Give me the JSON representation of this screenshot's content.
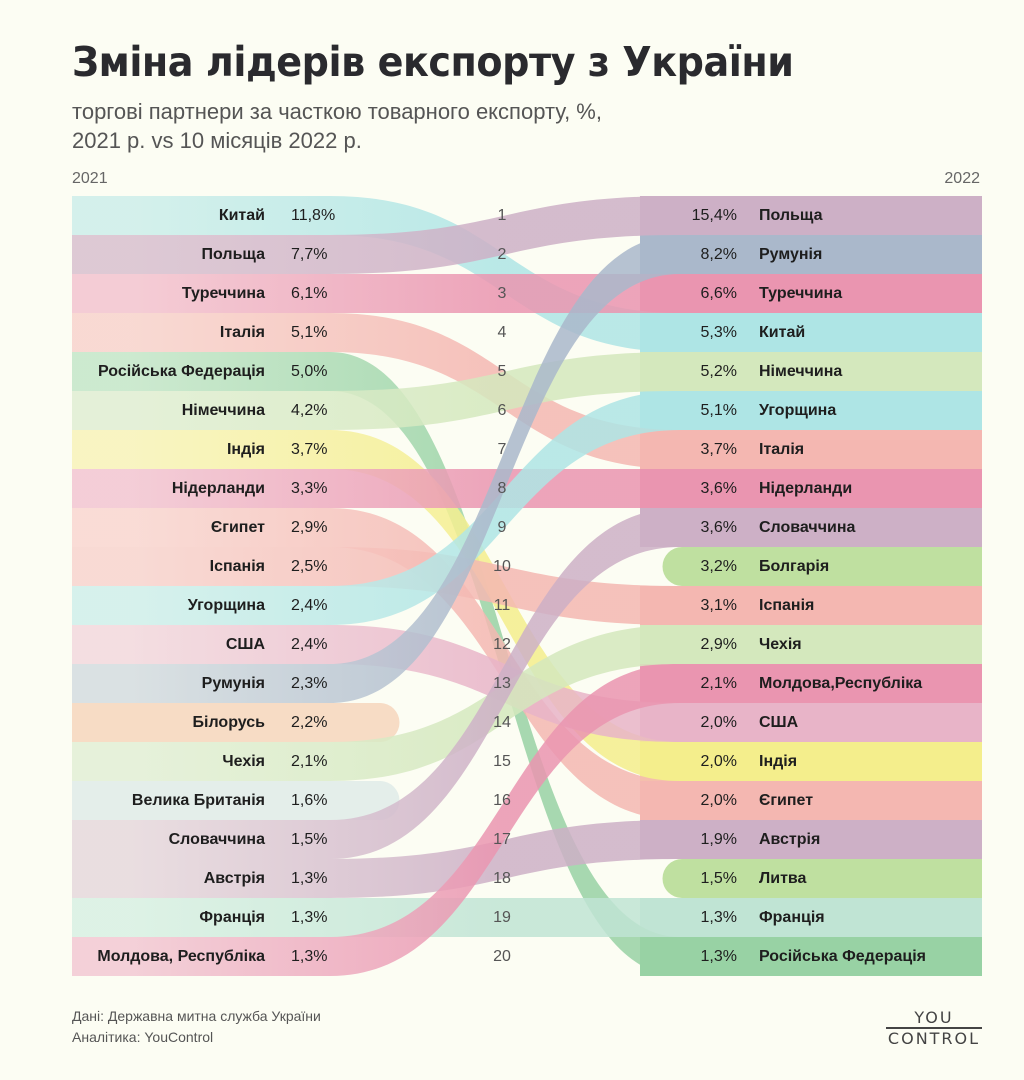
{
  "header": {
    "title": "Зміна лідерів експорту з України",
    "subtitle_line1": "торгові партнери за часткою товарного експорту, %,",
    "subtitle_line2": "2021 р. vs 10 місяців 2022 р."
  },
  "footer": {
    "source": "Дані: Державна митна служба України",
    "analytics": "Аналітика: YouControl",
    "logo_top": "YOU",
    "logo_bottom": "CONTROL"
  },
  "chart_data": {
    "type": "bump",
    "left_year": "2021",
    "right_year": "2022",
    "ranks": [
      "1",
      "2",
      "3",
      "4",
      "5",
      "6",
      "7",
      "8",
      "9",
      "10",
      "11",
      "12",
      "13",
      "14",
      "15",
      "16",
      "17",
      "18",
      "19",
      "20"
    ],
    "left": [
      {
        "country": "Китай",
        "value": "11,8%",
        "color": "#cdeeea",
        "target": 4
      },
      {
        "country": "Польща",
        "value": "7,7%",
        "color": "#d8c0cf",
        "target": 1
      },
      {
        "country": "Туреччина",
        "value": "6,1%",
        "color": "#f3c4d0",
        "target": 3
      },
      {
        "country": "Італія",
        "value": "5,1%",
        "color": "#f8d3cd",
        "target": 7
      },
      {
        "country": "Російська Федерація",
        "value": "5,0%",
        "color": "#c4e6c9",
        "target": 20
      },
      {
        "country": "Німеччина",
        "value": "4,2%",
        "color": "#e0eed3",
        "target": 5
      },
      {
        "country": "Індія",
        "value": "3,7%",
        "color": "#f8f3b9",
        "target": 15
      },
      {
        "country": "Нідерланди",
        "value": "3,3%",
        "color": "#f2c5d2",
        "target": 8
      },
      {
        "country": "Єгипет",
        "value": "2,9%",
        "color": "#f9d6d1",
        "target": 16
      },
      {
        "country": "Іспанія",
        "value": "2,5%",
        "color": "#f8d4cf",
        "target": 11
      },
      {
        "country": "Угорщина",
        "value": "2,4%",
        "color": "#d0efeb",
        "target": 6
      },
      {
        "country": "США",
        "value": "2,4%",
        "color": "#f2d8de",
        "target": 14
      },
      {
        "country": "Румунія",
        "value": "2,3%",
        "color": "#d4dce0",
        "target": 2
      },
      {
        "country": "Білорусь",
        "value": "2,2%",
        "color": "#f7dcc5",
        "target": null
      },
      {
        "country": "Чехія",
        "value": "2,1%",
        "color": "#e2efd6",
        "target": 12
      },
      {
        "country": "Велика Британія",
        "value": "1,6%",
        "color": "#e4eeea",
        "target": null
      },
      {
        "country": "Словаччина",
        "value": "1,5%",
        "color": "#e6d8dd",
        "target": 9
      },
      {
        "country": "Австрія",
        "value": "1,3%",
        "color": "#e6d8dd",
        "target": 17
      },
      {
        "country": "Франція",
        "value": "1,3%",
        "color": "#d8f0e3",
        "target": 19
      },
      {
        "country": "Молдова, Республіка",
        "value": "1,3%",
        "color": "#f2c8d3",
        "target": 13
      }
    ],
    "right": [
      {
        "country": "Польща",
        "value": "15,4%",
        "color": "#cdb0c6"
      },
      {
        "country": "Румунія",
        "value": "8,2%",
        "color": "#aab8cb"
      },
      {
        "country": "Туреччина",
        "value": "6,6%",
        "color": "#ea95b0"
      },
      {
        "country": "Китай",
        "value": "5,3%",
        "color": "#aee5e5"
      },
      {
        "country": "Німеччина",
        "value": "5,2%",
        "color": "#d4e8bd"
      },
      {
        "country": "Угорщина",
        "value": "5,1%",
        "color": "#aee5e5"
      },
      {
        "country": "Італія",
        "value": "3,7%",
        "color": "#f4b7b1"
      },
      {
        "country": "Нідерланди",
        "value": "3,6%",
        "color": "#ea95b0"
      },
      {
        "country": "Словаччина",
        "value": "3,6%",
        "color": "#cdb0c6"
      },
      {
        "country": "Болгарія",
        "value": "3,2%",
        "color": "#bfe0a0",
        "entry": true
      },
      {
        "country": "Іспанія",
        "value": "3,1%",
        "color": "#f4b7b1"
      },
      {
        "country": "Чехія",
        "value": "2,9%",
        "color": "#d4e8bd"
      },
      {
        "country": "Молдова,Республіка",
        "value": "2,1%",
        "color": "#ea95b0"
      },
      {
        "country": "США",
        "value": "2,0%",
        "color": "#e8b4c8"
      },
      {
        "country": "Індія",
        "value": "2,0%",
        "color": "#f4ee8c"
      },
      {
        "country": "Єгипет",
        "value": "2,0%",
        "color": "#f4b7b1"
      },
      {
        "country": "Австрія",
        "value": "1,9%",
        "color": "#cdb0c6"
      },
      {
        "country": "Литва",
        "value": "1,5%",
        "color": "#bfe0a0",
        "entry": true
      },
      {
        "country": "Франція",
        "value": "1,3%",
        "color": "#c0e4d4"
      },
      {
        "country": "Російська Федерація",
        "value": "1,3%",
        "color": "#98d2a4"
      }
    ]
  }
}
